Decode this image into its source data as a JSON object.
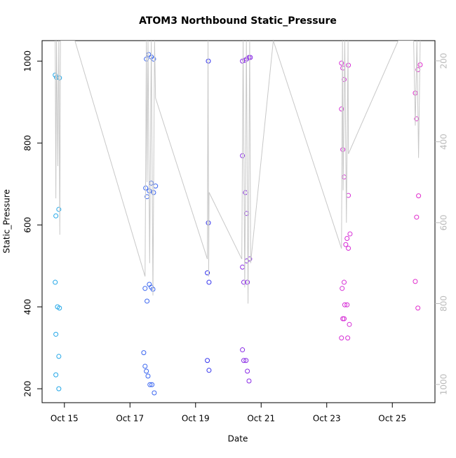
{
  "chart_data": {
    "type": "scatter",
    "title": "ATOM3 Northbound Static_Pressure",
    "xlabel": "Date",
    "ylabel": "Static_Pressure",
    "xlim": [
      14.32,
      26.3
    ],
    "xticks": [
      {
        "value": 15,
        "label": "Oct 15"
      },
      {
        "value": 17,
        "label": "Oct 17"
      },
      {
        "value": 19,
        "label": "Oct 19"
      },
      {
        "value": 21,
        "label": "Oct 21"
      },
      {
        "value": 23,
        "label": "Oct 23"
      },
      {
        "value": 25,
        "label": "Oct 25"
      }
    ],
    "ylim": [
      166,
      1050
    ],
    "yticks": [
      200,
      400,
      600,
      800,
      1000
    ],
    "y2lim": [
      1045,
      150
    ],
    "y2ticks": [
      200,
      400,
      600,
      800,
      1000
    ],
    "series": [
      {
        "color": "#22a7e8",
        "x": [
          14.72,
          14.76,
          14.85,
          14.74,
          14.83,
          14.72,
          14.79,
          14.85,
          14.74,
          14.83,
          14.74,
          14.83
        ],
        "values": [
          966,
          960,
          959,
          622,
          638,
          460,
          400,
          397,
          333,
          279,
          234,
          200
        ]
      },
      {
        "color": "#3a66f0",
        "x": [
          17.5,
          17.57,
          17.65,
          17.72,
          17.48,
          17.52,
          17.59,
          17.65,
          17.72,
          17.78,
          17.46,
          17.52,
          17.59,
          17.65,
          17.7,
          17.42,
          17.46,
          17.5,
          17.55,
          17.61,
          17.67,
          17.74
        ],
        "values": [
          1005,
          1016,
          1010,
          1005,
          690,
          669,
          683,
          702,
          679,
          695,
          445,
          414,
          455,
          448,
          443,
          288,
          255,
          243,
          231,
          210,
          210,
          190
        ]
      },
      {
        "color": "#3333ee",
        "x": [
          19.39,
          19.39,
          19.36,
          19.41,
          19.36,
          19.41
        ],
        "values": [
          1000,
          605,
          483,
          460,
          269,
          245
        ]
      },
      {
        "color": "#8a2be6",
        "x": [
          20.43,
          20.5,
          20.56,
          20.63,
          20.67,
          20.43,
          20.52,
          20.56,
          20.56,
          20.65,
          20.43,
          20.47,
          20.58,
          20.43,
          20.47,
          20.54,
          20.58,
          20.63
        ],
        "values": [
          1000,
          1002,
          1005,
          1009,
          1009,
          769,
          679,
          628,
          512,
          517,
          497,
          460,
          460,
          295,
          269,
          269,
          243,
          219
        ]
      },
      {
        "color": "#d62fd6",
        "x": [
          23.45,
          23.49,
          23.53,
          23.66,
          23.45,
          23.49,
          23.53,
          23.66,
          23.71,
          23.62,
          23.58,
          23.66,
          23.53,
          23.47,
          23.55,
          23.62,
          23.49,
          23.53,
          23.69,
          23.45,
          23.64
        ],
        "values": [
          995,
          983,
          955,
          990,
          883,
          784,
          717,
          672,
          578,
          567,
          552,
          543,
          460,
          445,
          405,
          405,
          371,
          371,
          357,
          324,
          324
        ]
      },
      {
        "color": "#e02ccc",
        "x": [
          25.7,
          25.78,
          25.85,
          25.74,
          25.8,
          25.74,
          25.7,
          25.78
        ],
        "values": [
          922,
          979,
          991,
          859,
          671,
          619,
          462,
          397
        ]
      },
      {
        "type": "line",
        "axis": "y2",
        "color": "#c8c8c8",
        "x": [
          14.72,
          14.74,
          14.76,
          14.8,
          14.83,
          14.86,
          14.88,
          15.32,
          17.46,
          17.5,
          17.52,
          17.55,
          17.6,
          17.65,
          17.7,
          17.75,
          17.78,
          19.36,
          19.38,
          19.4,
          19.41,
          20.41,
          20.45,
          20.5,
          20.55,
          20.6,
          20.65,
          20.68,
          21.37,
          23.45,
          23.48,
          23.5,
          23.55,
          23.6,
          23.65,
          23.66,
          25.18,
          25.65,
          25.7,
          25.75,
          25.8,
          25.85
        ],
        "values": [
          150,
          540,
          150,
          460,
          150,
          630,
          150,
          150,
          733,
          150,
          500,
          150,
          700,
          150,
          780,
          150,
          292,
          690,
          150,
          733,
          525,
          690,
          150,
          760,
          150,
          800,
          150,
          700,
          150,
          664,
          150,
          520,
          150,
          600,
          150,
          430,
          150,
          150,
          360,
          150,
          440,
          150
        ]
      }
    ]
  }
}
